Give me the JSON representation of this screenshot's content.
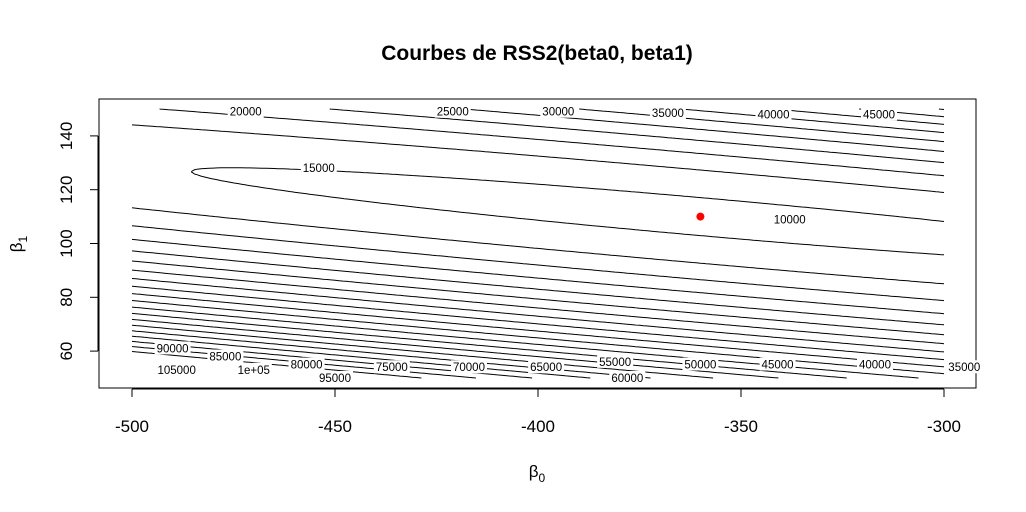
{
  "chart_data": {
    "type": "contour",
    "title": "Courbes de RSS2(beta0, beta1)",
    "xlabel": {
      "symbol": "β",
      "sub": "0"
    },
    "ylabel": {
      "symbol": "β",
      "sub": "1"
    },
    "xlim": [
      -500,
      -300
    ],
    "ylim": [
      50,
      150
    ],
    "x_ticks": [
      -500,
      -450,
      -400,
      -350,
      -300
    ],
    "x_tick_labels": [
      "-500",
      "-450",
      "-400",
      "-350",
      "-300"
    ],
    "y_ticks": [
      60,
      80,
      100,
      120,
      140
    ],
    "y_tick_labels": [
      "60",
      "80",
      "100",
      "120",
      "140"
    ],
    "contour_levels": [
      10000,
      15000,
      20000,
      25000,
      30000,
      35000,
      40000,
      45000,
      50000,
      55000,
      60000,
      65000,
      70000,
      75000,
      80000,
      85000,
      90000,
      95000,
      100000,
      105000
    ],
    "contour_labels": [
      {
        "text": "20000",
        "x": -472,
        "y": 149
      },
      {
        "text": "25000",
        "x": -421,
        "y": 149
      },
      {
        "text": "30000",
        "x": -395,
        "y": 149
      },
      {
        "text": "35000",
        "x": -368,
        "y": 148.5
      },
      {
        "text": "40000",
        "x": -342,
        "y": 148
      },
      {
        "text": "45000",
        "x": -316,
        "y": 148
      },
      {
        "text": "50000",
        "x": -290,
        "y": 148
      },
      {
        "text": "55000",
        "x": -264,
        "y": 148
      },
      {
        "text": "15000",
        "x": -454,
        "y": 128
      },
      {
        "text": "10000",
        "x": -338,
        "y": 109
      },
      {
        "text": "90000",
        "x": -490,
        "y": 61
      },
      {
        "text": "85000",
        "x": -477,
        "y": 58
      },
      {
        "text": "80000",
        "x": -457,
        "y": 55
      },
      {
        "text": "75000",
        "x": -436,
        "y": 54
      },
      {
        "text": "70000",
        "x": -417,
        "y": 54
      },
      {
        "text": "65000",
        "x": -398,
        "y": 54
      },
      {
        "text": "55000",
        "x": -381,
        "y": 56
      },
      {
        "text": "50000",
        "x": -360,
        "y": 55
      },
      {
        "text": "45000",
        "x": -341,
        "y": 55
      },
      {
        "text": "40000",
        "x": -317,
        "y": 55
      },
      {
        "text": "35000",
        "x": -295,
        "y": 54
      },
      {
        "text": "30000",
        "x": -274,
        "y": 54
      },
      {
        "text": "25000",
        "x": -252,
        "y": 54
      },
      {
        "text": "20000",
        "x": -235,
        "y": 55
      },
      {
        "text": "105000",
        "x": -489,
        "y": 53
      },
      {
        "text": "1e+05",
        "x": -470,
        "y": 53
      },
      {
        "text": "95000",
        "x": -450,
        "y": 50
      },
      {
        "text": "60000",
        "x": -378,
        "y": 50
      }
    ],
    "minimum_point": {
      "x": -360,
      "y": 110,
      "color": "#ff0000"
    },
    "line_color": "#000000"
  }
}
